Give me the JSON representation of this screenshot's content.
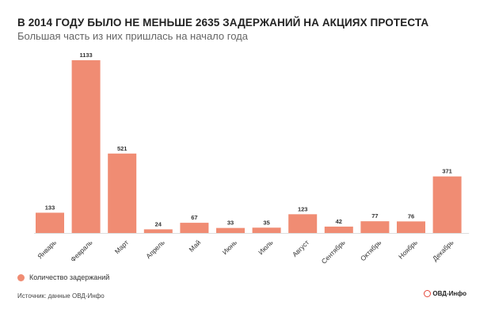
{
  "colors": {
    "bar": "#f08c73",
    "logo_accent": "#e5473a"
  },
  "header": {
    "title": "В 2014 ГОДУ БЫЛО НЕ МЕНЬШЕ 2635 ЗАДЕРЖАНИЙ НА АКЦИЯХ ПРОТЕСТА",
    "subtitle": "Большая часть из них пришлась на начало года"
  },
  "legend": {
    "label": "Количество задержаний"
  },
  "footer": {
    "source": "Источник: данные ОВД-Инфо",
    "logo": "ОВД-Инфо"
  },
  "chart_data": {
    "type": "bar",
    "title": "В 2014 ГОДУ БЫЛО НЕ МЕНЬШЕ 2635 ЗАДЕРЖАНИЙ НА АКЦИЯХ ПРОТЕСТА",
    "subtitle": "Большая часть из них пришлась на начало года",
    "categories": [
      "Январь",
      "Февраль",
      "Март",
      "Апрель",
      "Май",
      "Июнь",
      "Июль",
      "Август",
      "Сентябрь",
      "Октябрь",
      "Ноябрь",
      "Декабрь"
    ],
    "series": [
      {
        "name": "Количество задержаний",
        "values": [
          133,
          1133,
          521,
          24,
          67,
          33,
          35,
          123,
          42,
          77,
          76,
          371
        ]
      }
    ],
    "xlabel": "",
    "ylabel": "",
    "ylim": [
      0,
      1133
    ],
    "grid": false,
    "legend_position": "bottom-left"
  }
}
